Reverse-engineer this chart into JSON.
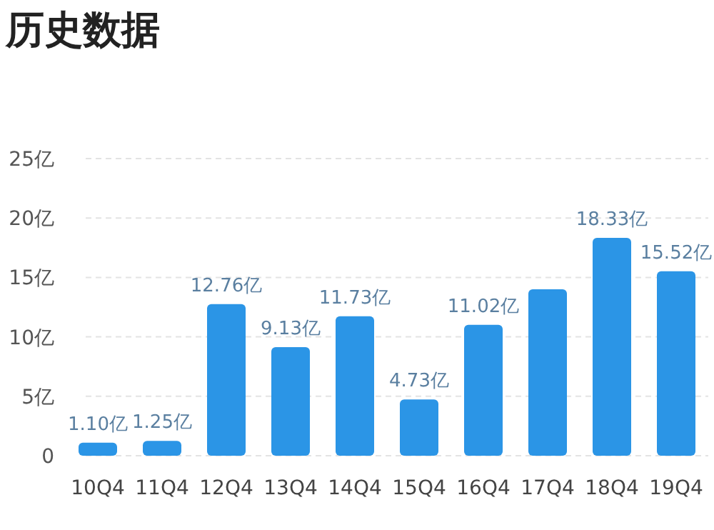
{
  "chart_data": {
    "type": "bar",
    "title": "历史数据",
    "categories": [
      "10Q4",
      "11Q4",
      "12Q4",
      "13Q4",
      "14Q4",
      "15Q4",
      "16Q4",
      "17Q4",
      "18Q4",
      "19Q4"
    ],
    "values": [
      1.1,
      1.25,
      12.76,
      9.13,
      11.73,
      4.73,
      11.02,
      14.0,
      18.33,
      15.52
    ],
    "value_labels": [
      "1.10亿",
      "1.25亿",
      "12.76亿",
      "9.13亿",
      "11.73亿",
      "4.73亿",
      "11.02亿",
      null,
      "18.33亿",
      "15.52亿"
    ],
    "color": "#2b95e6",
    "ylim": [
      0,
      25
    ],
    "yticks": [
      0,
      {
        "value": 5,
        "label": "5亿"
      },
      {
        "value": 10,
        "label": "10亿"
      },
      {
        "value": 15,
        "label": "15亿"
      },
      {
        "value": 20,
        "label": "20亿"
      },
      {
        "value": 25,
        "label": "25亿"
      }
    ],
    "grid": "y"
  }
}
